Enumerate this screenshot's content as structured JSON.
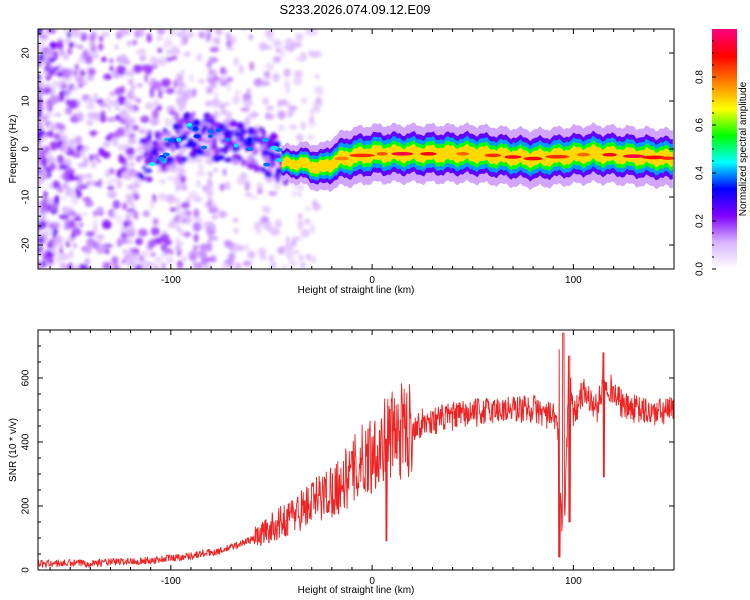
{
  "title": "S233.2026.074.09.12.E09",
  "chart_data": [
    {
      "type": "heatmap",
      "xlabel": "Height of straight line (km)",
      "ylabel": "Frequency (Hz)",
      "xlim": [
        -166,
        150
      ],
      "ylim": [
        -25,
        25
      ],
      "xticks": [
        -100,
        0,
        100
      ],
      "yticks": [
        -20,
        -10,
        0,
        10,
        20
      ],
      "ridge_center": {
        "x": [
          -110,
          -90,
          -70,
          -55,
          -45,
          -35,
          -25,
          -15,
          0,
          20,
          50,
          80,
          110,
          150
        ],
        "y": [
          -2,
          3,
          2,
          0,
          -3,
          -3,
          -4,
          -2,
          -1,
          -1,
          -1,
          -2,
          -1,
          -2
        ]
      },
      "colorbar": {
        "label": "Normalized spectral amplitude",
        "ticks": [
          0.0,
          0.2,
          0.4,
          0.6,
          0.8
        ],
        "range": [
          0,
          1
        ],
        "colors": [
          "#ffffff",
          "#d9b3ff",
          "#8000ff",
          "#0000ff",
          "#00ffff",
          "#00ff00",
          "#ffff00",
          "#ff8000",
          "#ff0000",
          "#ff0080"
        ]
      }
    },
    {
      "type": "line",
      "xlabel": "Height of straight line (km)",
      "ylabel": "SNR (10 * v/v)",
      "xlim": [
        -166,
        150
      ],
      "ylim": [
        0,
        750
      ],
      "xticks": [
        -100,
        0,
        100
      ],
      "yticks": [
        0,
        200,
        400,
        600
      ],
      "series": [
        {
          "name": "SNR",
          "color": "#ee2222",
          "x": [
            -166,
            -140,
            -110,
            -90,
            -75,
            -60,
            -45,
            -30,
            -15,
            -5,
            10,
            25,
            40,
            60,
            80,
            92,
            95,
            98,
            100,
            105,
            112,
            115,
            125,
            140,
            150
          ],
          "y": [
            20,
            22,
            30,
            45,
            60,
            95,
            150,
            210,
            270,
            340,
            420,
            460,
            480,
            500,
            505,
            470,
            60,
            640,
            480,
            560,
            500,
            600,
            510,
            490,
            500
          ]
        }
      ]
    }
  ]
}
